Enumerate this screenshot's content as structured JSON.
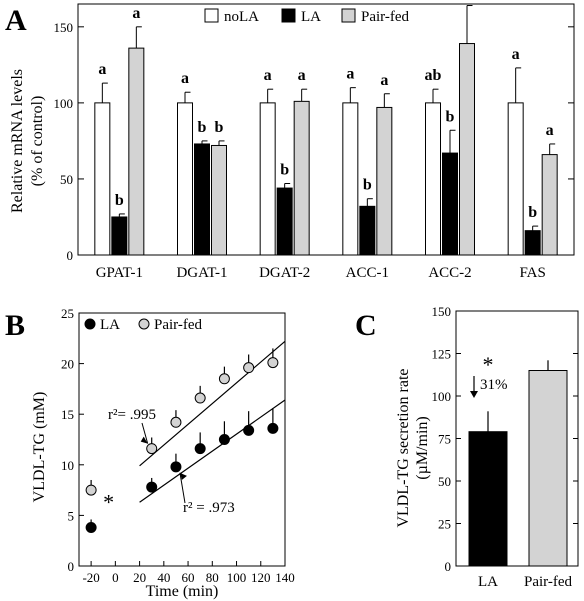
{
  "panels": {
    "a": "A",
    "b": "B",
    "c": "C"
  },
  "chart_data": [
    {
      "panel": "A",
      "type": "bar",
      "ylabel_line1": "Relative mRNA levels",
      "ylabel_line2": "(% of control)",
      "ylim": [
        0,
        165
      ],
      "yticks": [
        0,
        50,
        100,
        150
      ],
      "legend_placement": "top-center",
      "categories": [
        "GPAT-1",
        "DGAT-1",
        "DGAT-2",
        "ACC-1",
        "ACC-2",
        "FAS"
      ],
      "series": [
        {
          "name": "noLA",
          "color": "#ffffff",
          "values": [
            100,
            100,
            100,
            100,
            100,
            100
          ],
          "errors": [
            13,
            7,
            9,
            10,
            9,
            23
          ],
          "labels": [
            "a",
            "a",
            "a",
            "a",
            "ab",
            "a"
          ]
        },
        {
          "name": "LA",
          "color": "#000000",
          "values": [
            25,
            73,
            44,
            32,
            67,
            16
          ],
          "errors": [
            2,
            2,
            3,
            5,
            15,
            3
          ],
          "labels": [
            "b",
            "b",
            "b",
            "b",
            "b",
            "b"
          ]
        },
        {
          "name": "Pair-fed",
          "color": "#d3d3d3",
          "values": [
            136,
            72,
            101,
            97,
            139,
            66
          ],
          "errors": [
            14,
            3,
            8,
            9,
            25,
            7
          ],
          "labels": [
            "a",
            "b",
            "a",
            "a",
            "a",
            "a"
          ]
        }
      ]
    },
    {
      "panel": "B",
      "type": "scatter",
      "xlabel": "Time (min)",
      "ylabel": "VLDL-TG (mM)",
      "xlim": [
        -30,
        140
      ],
      "ylim": [
        0,
        25
      ],
      "xticks": [
        -20,
        0,
        20,
        40,
        60,
        80,
        100,
        120,
        140
      ],
      "yticks": [
        0,
        5,
        10,
        15,
        20,
        25
      ],
      "legend_placement": "top-left",
      "annotation_marker": "*",
      "series": [
        {
          "name": "LA",
          "color": "#000000",
          "x": [
            -20,
            30,
            50,
            70,
            90,
            110,
            130
          ],
          "y": [
            3.8,
            7.8,
            9.8,
            11.6,
            12.5,
            13.4,
            13.6
          ],
          "errors": [
            0.8,
            0.9,
            1.3,
            1.6,
            1.8,
            1.9,
            2.0
          ],
          "fit_x": [
            20,
            140
          ],
          "fit_y": [
            6.3,
            16.4
          ],
          "r2_label": "r² = .973"
        },
        {
          "name": "Pair-fed",
          "color": "#d3d3d3",
          "x": [
            -20,
            30,
            50,
            70,
            90,
            110,
            130
          ],
          "y": [
            7.5,
            11.6,
            14.2,
            16.6,
            18.5,
            19.6,
            20.1
          ],
          "errors": [
            1.0,
            1.1,
            1.2,
            1.2,
            1.2,
            1.3,
            1.4
          ],
          "fit_x": [
            20,
            140
          ],
          "fit_y": [
            9.9,
            22.2
          ],
          "r2_label": "r²= .995"
        }
      ]
    },
    {
      "panel": "C",
      "type": "bar",
      "ylabel_line1": "VLDL-TG secretion rate",
      "ylabel_line2": "(µM/min)",
      "ylim": [
        0,
        150
      ],
      "yticks": [
        0,
        25,
        50,
        75,
        100,
        125,
        150
      ],
      "categories": [
        "LA",
        "Pair-fed"
      ],
      "values": [
        79,
        115
      ],
      "errors": [
        12,
        6
      ],
      "colors": [
        "#000000",
        "#d3d3d3"
      ],
      "annotation_marker": "*",
      "annotation_text": "31%"
    }
  ]
}
